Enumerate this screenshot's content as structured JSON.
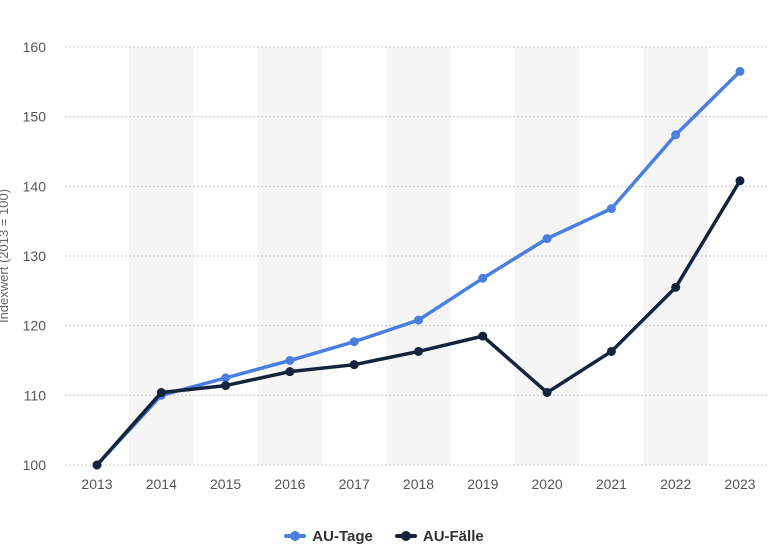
{
  "chart_data": {
    "type": "line",
    "categories": [
      "2013",
      "2014",
      "2015",
      "2016",
      "2017",
      "2018",
      "2019",
      "2020",
      "2021",
      "2022",
      "2023"
    ],
    "series": [
      {
        "name": "AU-Tage",
        "color": "#4a7fe0",
        "values": [
          100,
          110,
          112.5,
          115,
          117.7,
          120.8,
          126.8,
          132.5,
          136.8,
          147.4,
          156.5
        ]
      },
      {
        "name": "AU-Fälle",
        "color": "#14243e",
        "values": [
          100,
          110.4,
          111.4,
          113.4,
          114.4,
          116.3,
          118.5,
          110.4,
          116.3,
          125.5,
          140.8
        ]
      }
    ],
    "xlabel": "",
    "ylabel": "Indexwert (2013 = 100)",
    "ylim": [
      100,
      160
    ],
    "yticks": [
      100,
      110,
      120,
      130,
      140,
      150,
      160
    ],
    "grid": true,
    "legend": "bottom-center"
  }
}
